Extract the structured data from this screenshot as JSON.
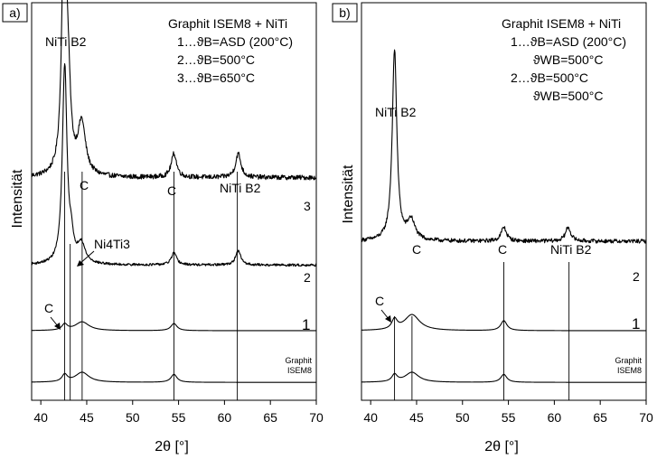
{
  "chart_data": [
    {
      "panel_label": "a)",
      "type": "line",
      "xlabel": "2θ [°]",
      "ylabel": "Intensität",
      "xlim": [
        39,
        70
      ],
      "xticks": [
        40,
        45,
        50,
        55,
        60,
        65,
        70
      ],
      "legend": {
        "title": "Graphit ISEM8 + NiTi",
        "lines": [
          "1…ϑB=ASD (200°C)",
          "2…ϑB=500°C",
          "3…ϑB=650°C"
        ]
      },
      "reference_lines_x": [
        42.6,
        43.2,
        44.5,
        54.5,
        61.4
      ],
      "series": [
        {
          "name": "3",
          "baseline": 0.56,
          "peaks": [
            [
              42.55,
              0.72,
              0.28
            ],
            [
              43.0,
              0.16,
              0.3
            ],
            [
              44.45,
              0.13,
              0.5
            ],
            [
              54.5,
              0.06,
              0.35
            ],
            [
              61.5,
              0.06,
              0.35
            ]
          ],
          "noise": 0.006
        },
        {
          "name": "2",
          "baseline": 0.34,
          "peaks": [
            [
              42.6,
              0.5,
              0.3
            ],
            [
              43.3,
              0.05,
              0.25
            ],
            [
              44.4,
              0.05,
              0.5
            ],
            [
              54.5,
              0.03,
              0.35
            ],
            [
              61.5,
              0.035,
              0.35
            ]
          ],
          "noise": 0.003
        },
        {
          "name": "1",
          "baseline": 0.175,
          "peaks": [
            [
              42.6,
              0.015,
              0.35
            ],
            [
              44.5,
              0.022,
              0.9
            ],
            [
              54.5,
              0.018,
              0.4
            ]
          ],
          "noise": 0
        },
        {
          "name": "Graphit ISEM8",
          "baseline": 0.045,
          "peaks": [
            [
              42.6,
              0.018,
              0.35
            ],
            [
              44.5,
              0.025,
              0.9
            ],
            [
              54.5,
              0.02,
              0.4
            ]
          ],
          "noise": 0
        }
      ],
      "annotations": [
        "NiTi B2",
        "C",
        "C",
        "NiTi B2",
        "Ni4Ti3",
        "C",
        "3",
        "2",
        "1",
        "Graphit",
        "ISEM8"
      ]
    },
    {
      "panel_label": "b)",
      "type": "line",
      "xlabel": "2θ [°]",
      "ylabel": "Intensität",
      "xlim": [
        39,
        70
      ],
      "xticks": [
        40,
        45,
        50,
        55,
        60,
        65,
        70
      ],
      "legend": {
        "title": "Graphit ISEM8 + NiTi",
        "lines": [
          "1…ϑB=ASD (200°C)",
          "ϑWB=500°C",
          "2…ϑB=500°C",
          "ϑWB=500°C"
        ]
      },
      "reference_lines_x": [
        42.6,
        44.5,
        54.5,
        61.6
      ],
      "series": [
        {
          "name": "2",
          "baseline": 0.4,
          "peaks": [
            [
              42.6,
              0.48,
              0.3
            ],
            [
              44.4,
              0.05,
              0.5
            ],
            [
              54.5,
              0.035,
              0.35
            ],
            [
              61.5,
              0.035,
              0.35
            ]
          ],
          "noise": 0.005
        },
        {
          "name": "1",
          "baseline": 0.175,
          "peaks": [
            [
              42.6,
              0.025,
              0.35
            ],
            [
              44.5,
              0.04,
              1.0
            ],
            [
              54.5,
              0.025,
              0.4
            ]
          ],
          "noise": 0
        },
        {
          "name": "Graphit ISEM8",
          "baseline": 0.045,
          "peaks": [
            [
              42.6,
              0.018,
              0.35
            ],
            [
              44.5,
              0.025,
              0.9
            ],
            [
              54.5,
              0.02,
              0.4
            ]
          ],
          "noise": 0
        }
      ],
      "annotations": [
        "NiTi B2",
        "C",
        "C",
        "NiTi B2",
        "C",
        "2",
        "1",
        "Graphit",
        "ISEM8"
      ]
    }
  ]
}
